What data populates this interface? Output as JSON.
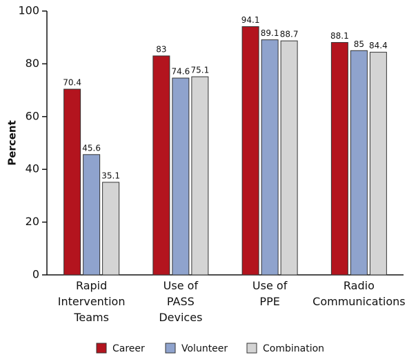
{
  "chart_data": {
    "type": "bar",
    "categories": [
      "Rapid\nIntervention\nTeams",
      "Use of\nPASS\nDevices",
      "Use of\nPPE",
      "Radio\nCommunications"
    ],
    "series": [
      {
        "name": "Career",
        "color": "#b3141e",
        "values": [
          70.4,
          83,
          94.1,
          88.1
        ]
      },
      {
        "name": "Volunteer",
        "color": "#8fa3cd",
        "values": [
          45.6,
          74.6,
          89.1,
          85
        ]
      },
      {
        "name": "Combination",
        "color": "#d4d4d4",
        "values": [
          35.1,
          75.1,
          88.7,
          84.4
        ]
      }
    ],
    "ylabel": "Percent",
    "ylim": [
      0,
      100
    ],
    "yticks": [
      0,
      20,
      40,
      60,
      80,
      100
    ],
    "grid": false,
    "legend": "bottom"
  }
}
